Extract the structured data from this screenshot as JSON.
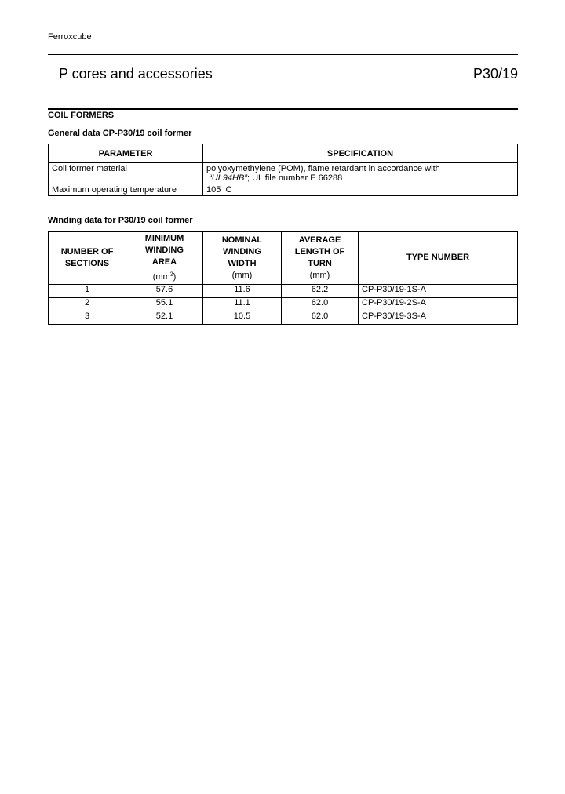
{
  "header": {
    "company": "Ferroxcube",
    "title": "P cores and accessories",
    "code": "P30/19"
  },
  "section": {
    "title": "COIL FORMERS"
  },
  "general": {
    "title": "General data CP-P30/19 coil former",
    "columns": [
      "PARAMETER",
      "SPECIFICATION"
    ],
    "rows": [
      {
        "parameter": "Coil former material",
        "spec_line1": "polyoxymethylene (POM), flame retardant in accordance with",
        "spec_italic": "“UL94HB”",
        "spec_line2": "; UL file number E 66288"
      },
      {
        "parameter": "Maximum operating temperature",
        "spec": "105  C"
      }
    ]
  },
  "winding": {
    "title": "Winding data for P30/19 coil former",
    "columns": [
      {
        "l1": "NUMBER OF",
        "l2": "SECTIONS"
      },
      {
        "l1": "MINIMUM",
        "l2": "WINDING",
        "l3": "AREA",
        "l4": "(mm",
        "sup": "2",
        "l4end": ")"
      },
      {
        "l1": "NOMINAL",
        "l2": "WINDING",
        "l3": "WIDTH",
        "l4": "(mm)"
      },
      {
        "l1": "AVERAGE",
        "l2": "LENGTH OF",
        "l3": "TURN",
        "l4": "(mm)"
      },
      {
        "l1": "TYPE NUMBER"
      }
    ],
    "rows": [
      [
        "1",
        "57.6",
        "11.6",
        "62.2",
        "CP-P30/19-1S-A"
      ],
      [
        "2",
        "55.1",
        "11.1",
        "62.0",
        "CP-P30/19-2S-A"
      ],
      [
        "3",
        "52.1",
        "10.5",
        "62.0",
        "CP-P30/19-3S-A"
      ]
    ]
  }
}
